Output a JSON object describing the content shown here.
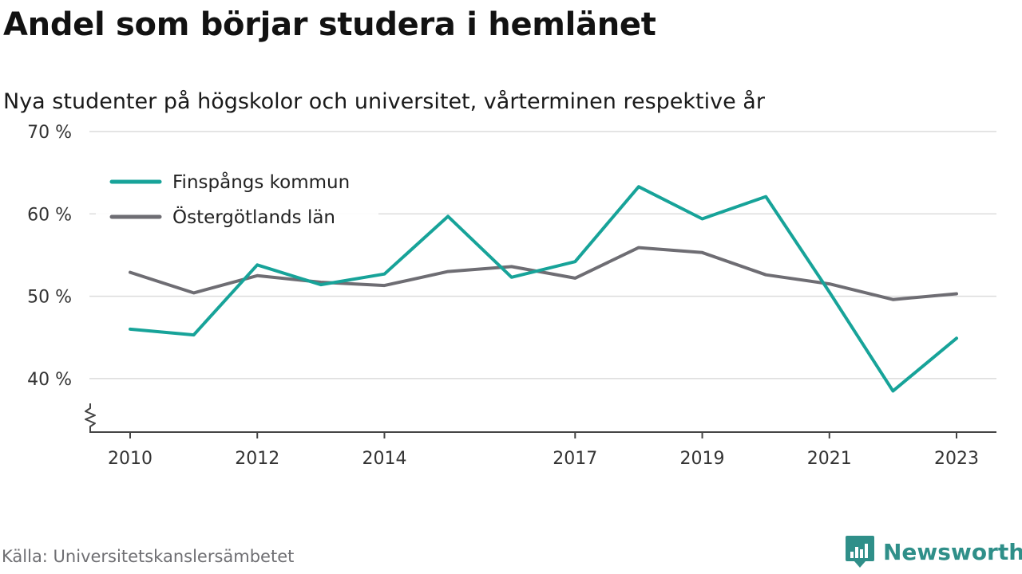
{
  "title": "Andel som börjar studera i hemlänet",
  "subtitle": "Nya studenter på högskolor och universitet, vårterminen respektive år",
  "source": "Källa: Universitetskanslersämbetet",
  "brand": {
    "name": "Newsworthy",
    "icon": "newsworthy-logo-icon"
  },
  "colors": {
    "finspang": "#17a399",
    "ostergotland": "#6e6d73",
    "grid": "#dcdcdc",
    "axis": "#444444",
    "brand": "#2f8f89"
  },
  "chart_data": {
    "type": "line",
    "title": "Andel som börjar studera i hemlänet",
    "subtitle": "Nya studenter på högskolor och universitet, vårterminen respektive år",
    "x": [
      2010,
      2011,
      2012,
      2013,
      2014,
      2015,
      2016,
      2017,
      2018,
      2019,
      2020,
      2021,
      2022,
      2023
    ],
    "x_tick_labels": [
      "2010",
      "2012",
      "2014",
      "2017",
      "2019",
      "2021",
      "2023"
    ],
    "y_ticks": [
      40,
      50,
      60,
      70
    ],
    "y_tick_labels": [
      "40 %",
      "50 %",
      "60 %",
      "70 %"
    ],
    "ylim": [
      33.5,
      70
    ],
    "y_axis_break": true,
    "grid": "horizontal",
    "legend_position": "top-left",
    "series": [
      {
        "name": "Finspångs kommun",
        "color": "#17a399",
        "values": [
          46.0,
          45.3,
          53.8,
          51.4,
          52.7,
          59.7,
          52.3,
          54.2,
          63.3,
          59.4,
          62.1,
          50.5,
          38.5,
          44.9
        ]
      },
      {
        "name": "Östergötlands län",
        "color": "#6e6d73",
        "values": [
          52.9,
          50.4,
          52.5,
          51.7,
          51.3,
          53.0,
          53.6,
          52.2,
          55.9,
          55.3,
          52.6,
          51.5,
          49.6,
          50.3
        ]
      }
    ]
  }
}
